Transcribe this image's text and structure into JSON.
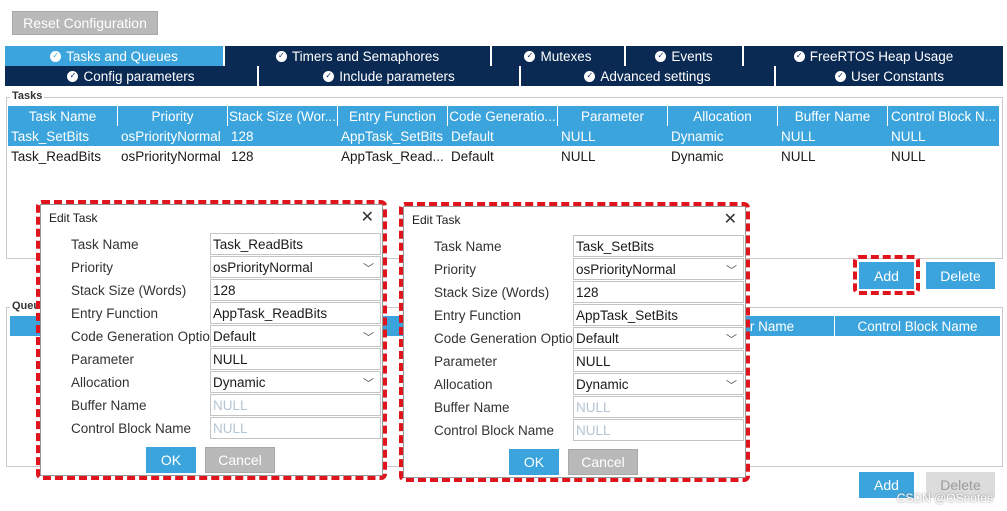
{
  "toolbar": {
    "reset_label": "Reset Configuration"
  },
  "tabs": {
    "row1": [
      {
        "label": "Tasks and Queues",
        "active": true
      },
      {
        "label": "Timers and Semaphores",
        "active": false
      },
      {
        "label": "Mutexes",
        "active": false
      },
      {
        "label": "Events",
        "active": false
      },
      {
        "label": "FreeRTOS Heap Usage",
        "active": false
      }
    ],
    "row2": [
      {
        "label": "Config parameters"
      },
      {
        "label": "Include parameters"
      },
      {
        "label": "Advanced settings"
      },
      {
        "label": "User Constants"
      }
    ]
  },
  "tasks": {
    "group_label": "Tasks",
    "columns": [
      "Task Name",
      "Priority",
      "Stack Size (Wor...",
      "Entry Function",
      "Code Generatio...",
      "Parameter",
      "Allocation",
      "Buffer Name",
      "Control Block N..."
    ],
    "rows": [
      [
        "Task_SetBits",
        "osPriorityNormal",
        "128",
        "AppTask_SetBits",
        "Default",
        "NULL",
        "Dynamic",
        "NULL",
        "NULL"
      ],
      [
        "Task_ReadBits",
        "osPriorityNormal",
        "128",
        "AppTask_Read...",
        "Default",
        "NULL",
        "Dynamic",
        "NULL",
        "NULL"
      ]
    ],
    "add_label": "Add",
    "delete_label": "Delete"
  },
  "queues": {
    "group_label": "Queues",
    "visible_columns": [
      "r Name",
      "Control Block Name"
    ],
    "add_label": "Add",
    "delete_label": "Delete"
  },
  "dialog_left": {
    "title": "Edit Task",
    "close": "✕",
    "labels": [
      "Task Name",
      "Priority",
      "Stack Size (Words)",
      "Entry Function",
      "Code Generation Option",
      "Parameter",
      "Allocation",
      "Buffer Name",
      "Control Block Name"
    ],
    "values": [
      "Task_ReadBits",
      "osPriorityNormal",
      "128",
      "AppTask_ReadBits",
      "Default",
      "NULL",
      "Dynamic",
      "NULL",
      "NULL"
    ],
    "ok_label": "OK",
    "cancel_label": "Cancel"
  },
  "dialog_right": {
    "title": "Edit Task",
    "close": "✕",
    "labels": [
      "Task Name",
      "Priority",
      "Stack Size (Words)",
      "Entry Function",
      "Code Generation Option",
      "Parameter",
      "Allocation",
      "Buffer Name",
      "Control Block Name"
    ],
    "values": [
      "Task_SetBits",
      "osPriorityNormal",
      "128",
      "AppTask_SetBits",
      "Default",
      "NULL",
      "Dynamic",
      "NULL",
      "NULL"
    ],
    "ok_label": "OK",
    "cancel_label": "Cancel"
  },
  "icons": {
    "check": "check-circle-icon",
    "dropdown": "chevron-down-icon",
    "close": "close-icon"
  },
  "colors": {
    "accent": "#3ba4dc",
    "tab_dark": "#0a2a54",
    "annotation_red": "#e0141d"
  },
  "watermark": "CSDN @OSnotes"
}
